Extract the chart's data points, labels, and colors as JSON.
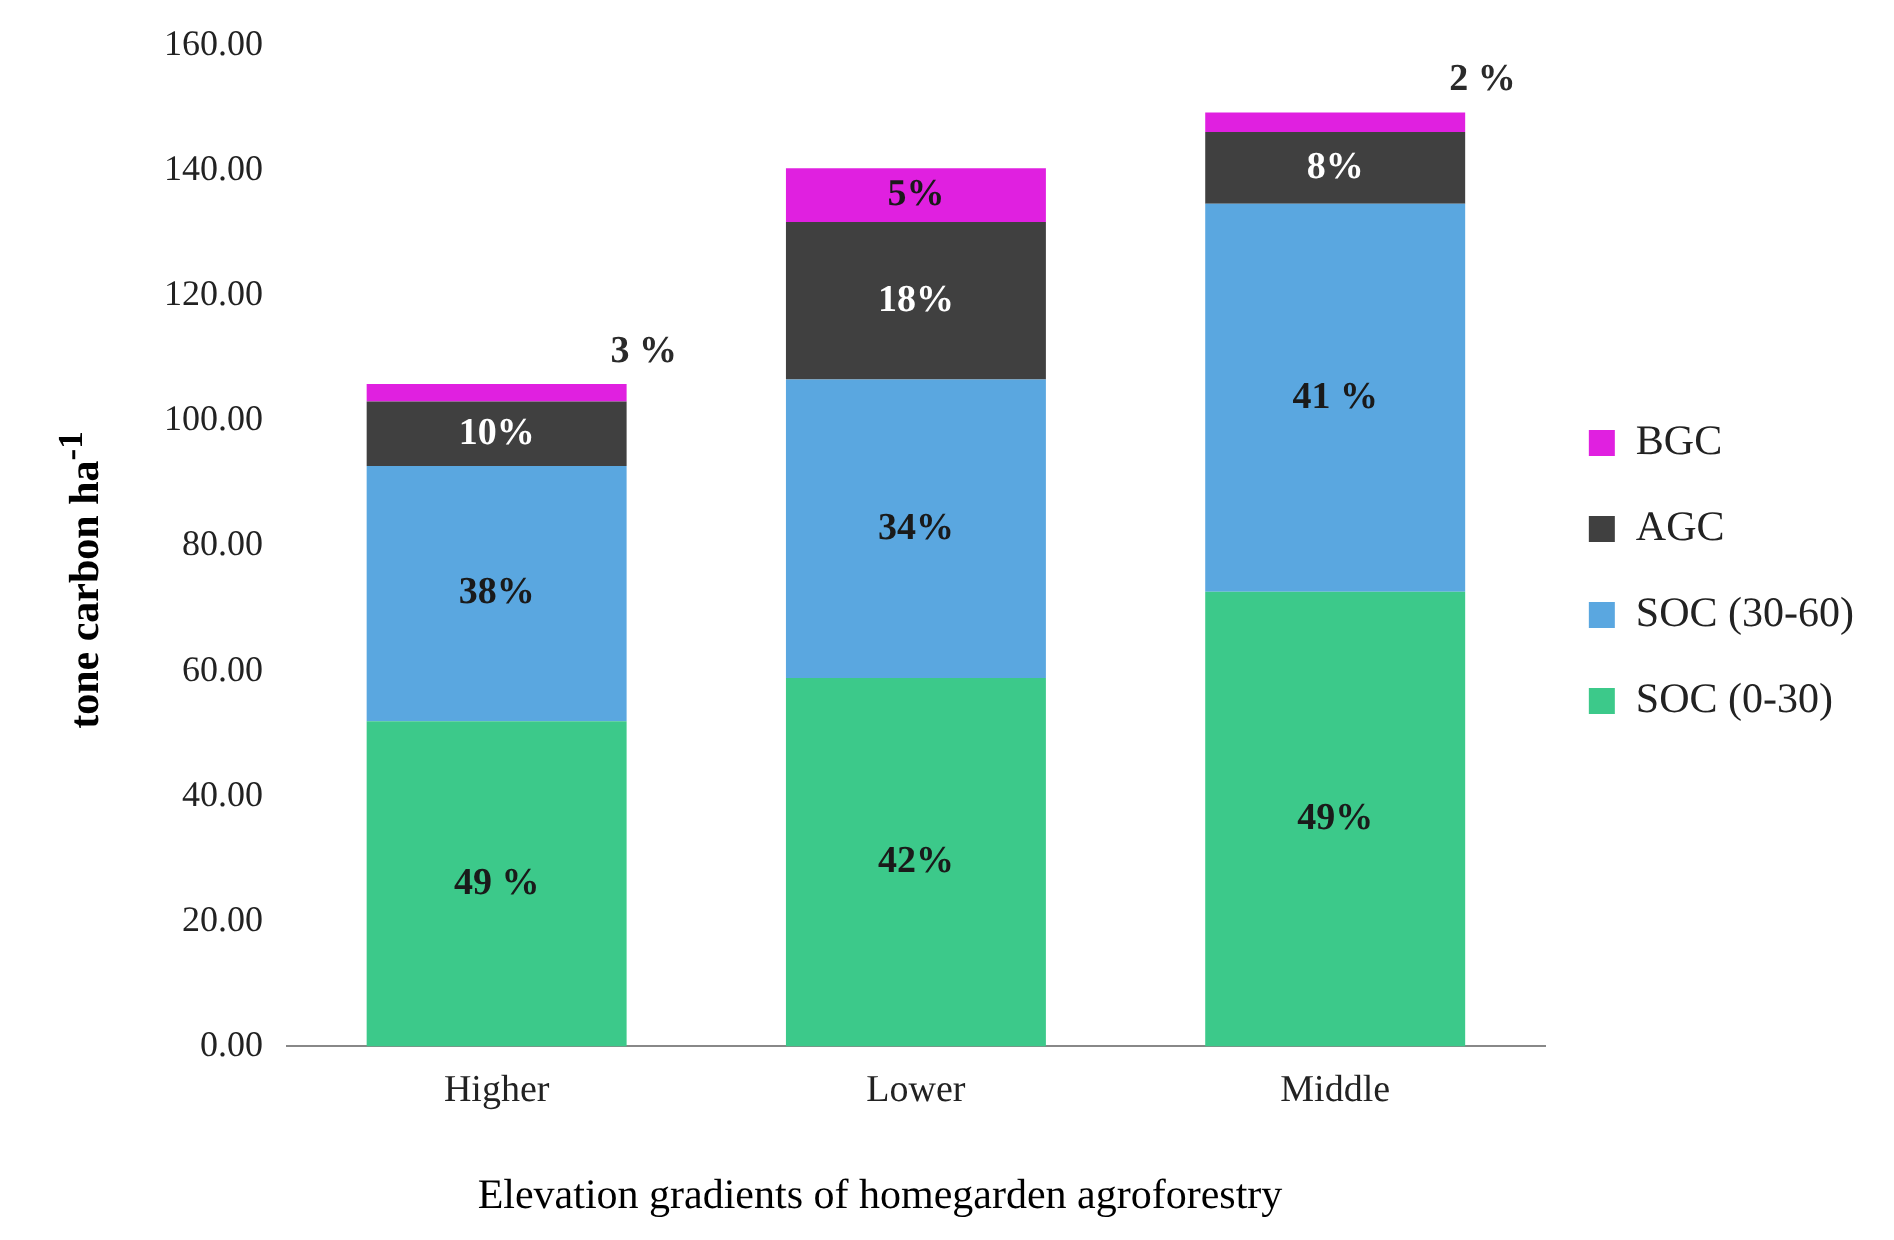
{
  "chart_data": {
    "type": "bar",
    "stacked": true,
    "xlabel": "Elevation gradients of homegarden agroforestry",
    "ylabel": "tone carbon ha$^{-1}$",
    "categories": [
      "Higher",
      "Lower",
      "Middle"
    ],
    "series": [
      {
        "name": "SOC (0-30)",
        "color": "#3cc98a",
        "values": [
          52.0,
          58.9,
          72.7
        ]
      },
      {
        "name": "SOC (30-60)",
        "color": "#5aa7e0",
        "values": [
          40.8,
          47.7,
          62.0
        ]
      },
      {
        "name": "AGC",
        "color": "#404040",
        "values": [
          10.3,
          25.2,
          11.5
        ]
      },
      {
        "name": "BGC",
        "color": "#e020e0",
        "values": [
          2.8,
          8.6,
          3.1
        ]
      }
    ],
    "annotations": [
      "49 %",
      "38%",
      "10%",
      "3 %",
      "42%",
      "34%",
      "18%",
      "5%",
      "49%",
      "41 %",
      "8%",
      "2 %"
    ],
    "ylim": [
      0,
      160
    ],
    "yticks": [
      {
        "value": 0,
        "label": "0.00"
      },
      {
        "value": 20,
        "label": "20.00"
      },
      {
        "value": 40,
        "label": "40.00"
      },
      {
        "value": 60,
        "label": "60.00"
      },
      {
        "value": 80,
        "label": "80.00"
      },
      {
        "value": 100,
        "label": "100.00"
      },
      {
        "value": 120,
        "label": "120.00"
      },
      {
        "value": 140,
        "label": "140.00"
      },
      {
        "value": 160,
        "label": "160.00"
      }
    ],
    "legend": "right"
  }
}
